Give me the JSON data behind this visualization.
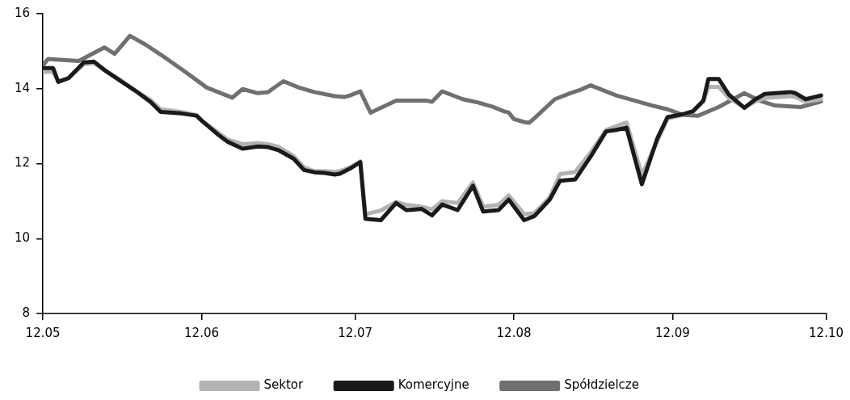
{
  "chart_data": {
    "type": "line",
    "legend": "bottom",
    "grid": false,
    "marker": "none",
    "line_style": "solid",
    "xlim": [
      "--05-12",
      "--10-12"
    ],
    "xticks": [
      {
        "value": "--05-12",
        "label": "12.05"
      },
      {
        "value": "--06-12",
        "label": "12.06"
      },
      {
        "value": "--07-12",
        "label": "12.07"
      },
      {
        "value": "--08-12",
        "label": "12.08"
      },
      {
        "value": "--09-12",
        "label": "12.09"
      },
      {
        "value": "--10-12",
        "label": "12.10"
      }
    ],
    "ylim": [
      8,
      16
    ],
    "yticks": [
      8,
      10,
      12,
      14,
      16
    ],
    "series": [
      {
        "name": "Sektor",
        "color": "#b3b3b3",
        "x": [
          "--05-12",
          "--05-14",
          "--05-15",
          "--05-17",
          "--05-20",
          "--05-22",
          "--05-24",
          "--05-27",
          "--05-30",
          "--06-02",
          "--06-04",
          "--06-08",
          "--06-11",
          "--06-12",
          "--06-15",
          "--06-17",
          "--06-20",
          "--06-23",
          "--06-25",
          "--06-27",
          "--06-30",
          "--07-02",
          "--07-04",
          "--07-06",
          "--07-08",
          "--07-09",
          "--07-11",
          "--07-13",
          "--07-14",
          "--07-17",
          "--07-20",
          "--07-22",
          "--07-25",
          "--07-27",
          "--07-29",
          "--08-01",
          "--08-04",
          "--08-06",
          "--08-09",
          "--08-11",
          "--08-14",
          "--08-16",
          "--08-19",
          "--08-21",
          "--08-24",
          "--08-27",
          "--08-30",
          "--09-01",
          "--09-03",
          "--09-06",
          "--09-09",
          "--09-11",
          "--09-14",
          "--09-16",
          "--09-18",
          "--09-19",
          "--09-21",
          "--09-23",
          "--09-26",
          "--09-28",
          "--09-30",
          "--10-05",
          "--10-06",
          "--10-08",
          "--10-11"
        ],
        "values": [
          14.45,
          14.45,
          14.2,
          14.28,
          14.65,
          14.68,
          14.5,
          14.25,
          13.95,
          13.7,
          13.45,
          13.38,
          13.3,
          13.15,
          12.85,
          12.65,
          12.52,
          12.55,
          12.52,
          12.45,
          12.2,
          11.9,
          11.8,
          11.8,
          11.78,
          11.8,
          11.9,
          12.06,
          10.65,
          10.75,
          10.98,
          10.9,
          10.85,
          10.78,
          11.0,
          10.95,
          11.5,
          10.85,
          10.9,
          11.15,
          10.65,
          10.68,
          11.1,
          11.72,
          11.78,
          12.3,
          12.9,
          13.0,
          13.1,
          11.7,
          12.6,
          13.2,
          13.3,
          13.4,
          13.65,
          14.05,
          14.05,
          13.75,
          13.5,
          13.65,
          13.75,
          13.8,
          13.78,
          13.65,
          13.72
        ]
      },
      {
        "name": "Komercyjne",
        "color": "#1a1a1a",
        "x": [
          "--05-12",
          "--05-14",
          "--05-15",
          "--05-17",
          "--05-20",
          "--05-22",
          "--05-24",
          "--05-27",
          "--05-30",
          "--06-02",
          "--06-04",
          "--06-08",
          "--06-11",
          "--06-12",
          "--06-15",
          "--06-17",
          "--06-20",
          "--06-23",
          "--06-25",
          "--06-27",
          "--06-30",
          "--07-02",
          "--07-04",
          "--07-06",
          "--07-08",
          "--07-09",
          "--07-11",
          "--07-13",
          "--07-14",
          "--07-17",
          "--07-20",
          "--07-22",
          "--07-25",
          "--07-27",
          "--07-29",
          "--08-01",
          "--08-04",
          "--08-06",
          "--08-09",
          "--08-11",
          "--08-14",
          "--08-16",
          "--08-19",
          "--08-21",
          "--08-24",
          "--08-27",
          "--08-30",
          "--09-01",
          "--09-03",
          "--09-06",
          "--09-09",
          "--09-11",
          "--09-14",
          "--09-16",
          "--09-18",
          "--09-19",
          "--09-21",
          "--09-23",
          "--09-26",
          "--09-28",
          "--09-30",
          "--10-05",
          "--10-06",
          "--10-08",
          "--10-11"
        ],
        "values": [
          14.55,
          14.55,
          14.18,
          14.28,
          14.7,
          14.72,
          14.5,
          14.22,
          13.95,
          13.65,
          13.38,
          13.34,
          13.28,
          13.15,
          12.8,
          12.59,
          12.4,
          12.46,
          12.44,
          12.36,
          12.13,
          11.83,
          11.77,
          11.75,
          11.71,
          11.73,
          11.87,
          12.04,
          10.53,
          10.49,
          10.95,
          10.76,
          10.79,
          10.62,
          10.91,
          10.76,
          11.41,
          10.72,
          10.76,
          11.04,
          10.49,
          10.6,
          11.04,
          11.54,
          11.58,
          12.19,
          12.86,
          12.9,
          12.96,
          11.45,
          12.67,
          13.24,
          13.32,
          13.4,
          13.68,
          14.26,
          14.26,
          13.84,
          13.49,
          13.7,
          13.86,
          13.91,
          13.88,
          13.72,
          13.82
        ]
      },
      {
        "name": "Spółdzielcze",
        "color": "#707070",
        "x": [
          "--05-12",
          "--05-13",
          "--05-19",
          "--05-24",
          "--05-26",
          "--05-29",
          "--06-01",
          "--06-04",
          "--06-09",
          "--06-13",
          "--06-18",
          "--06-20",
          "--06-23",
          "--06-25",
          "--06-26",
          "--06-28",
          "--07-01",
          "--07-04",
          "--07-08",
          "--07-10",
          "--07-11",
          "--07-13",
          "--07-15",
          "--07-20",
          "--07-26",
          "--07-27",
          "--07-29",
          "--08-02",
          "--08-05",
          "--08-08",
          "--08-10",
          "--08-11",
          "--08-12",
          "--08-14",
          "--08-15",
          "--08-16",
          "--08-20",
          "--08-23",
          "--08-25",
          "--08-27",
          "--09-01",
          "--09-08",
          "--09-11",
          "--09-14",
          "--09-17",
          "--09-21",
          "--09-26",
          "--09-29",
          "--10-02",
          "--10-07",
          "--10-11"
        ],
        "values": [
          14.62,
          14.79,
          14.74,
          15.1,
          14.93,
          15.41,
          15.18,
          14.91,
          14.43,
          14.03,
          13.76,
          13.99,
          13.88,
          13.91,
          14.01,
          14.2,
          14.03,
          13.91,
          13.8,
          13.78,
          13.82,
          13.93,
          13.36,
          13.68,
          13.68,
          13.65,
          13.93,
          13.72,
          13.63,
          13.51,
          13.4,
          13.36,
          13.19,
          13.11,
          13.09,
          13.21,
          13.72,
          13.88,
          13.97,
          14.09,
          13.82,
          13.55,
          13.45,
          13.3,
          13.28,
          13.51,
          13.88,
          13.68,
          13.55,
          13.51,
          13.66
        ]
      }
    ]
  }
}
